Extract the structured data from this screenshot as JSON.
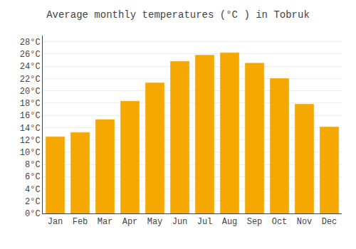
{
  "chart_data": {
    "type": "bar",
    "title": "Average monthly temperatures (°C ) in Tobruk",
    "categories": [
      "Jan",
      "Feb",
      "Mar",
      "Apr",
      "May",
      "Jun",
      "Jul",
      "Aug",
      "Sep",
      "Oct",
      "Nov",
      "Dec"
    ],
    "values": [
      12.5,
      13.2,
      15.3,
      18.3,
      21.3,
      24.8,
      25.8,
      26.2,
      24.5,
      22.0,
      17.8,
      14.1
    ],
    "color": "#F5A800",
    "ylim": [
      0,
      29
    ],
    "yticks": [
      {
        "value": 0,
        "label": "0°C"
      },
      {
        "value": 2,
        "label": "2°C"
      },
      {
        "value": 4,
        "label": "4°C"
      },
      {
        "value": 6,
        "label": "6°C"
      },
      {
        "value": 8,
        "label": "8°C"
      },
      {
        "value": 10,
        "label": "10°C"
      },
      {
        "value": 12,
        "label": "12°C"
      },
      {
        "value": 14,
        "label": "14°C"
      },
      {
        "value": 16,
        "label": "16°C"
      },
      {
        "value": 18,
        "label": "18°C"
      },
      {
        "value": 20,
        "label": "20°C"
      },
      {
        "value": 22,
        "label": "22°C"
      },
      {
        "value": 24,
        "label": "24°C"
      },
      {
        "value": 26,
        "label": "26°C"
      },
      {
        "value": 28,
        "label": "28°C"
      }
    ],
    "grid": true
  }
}
